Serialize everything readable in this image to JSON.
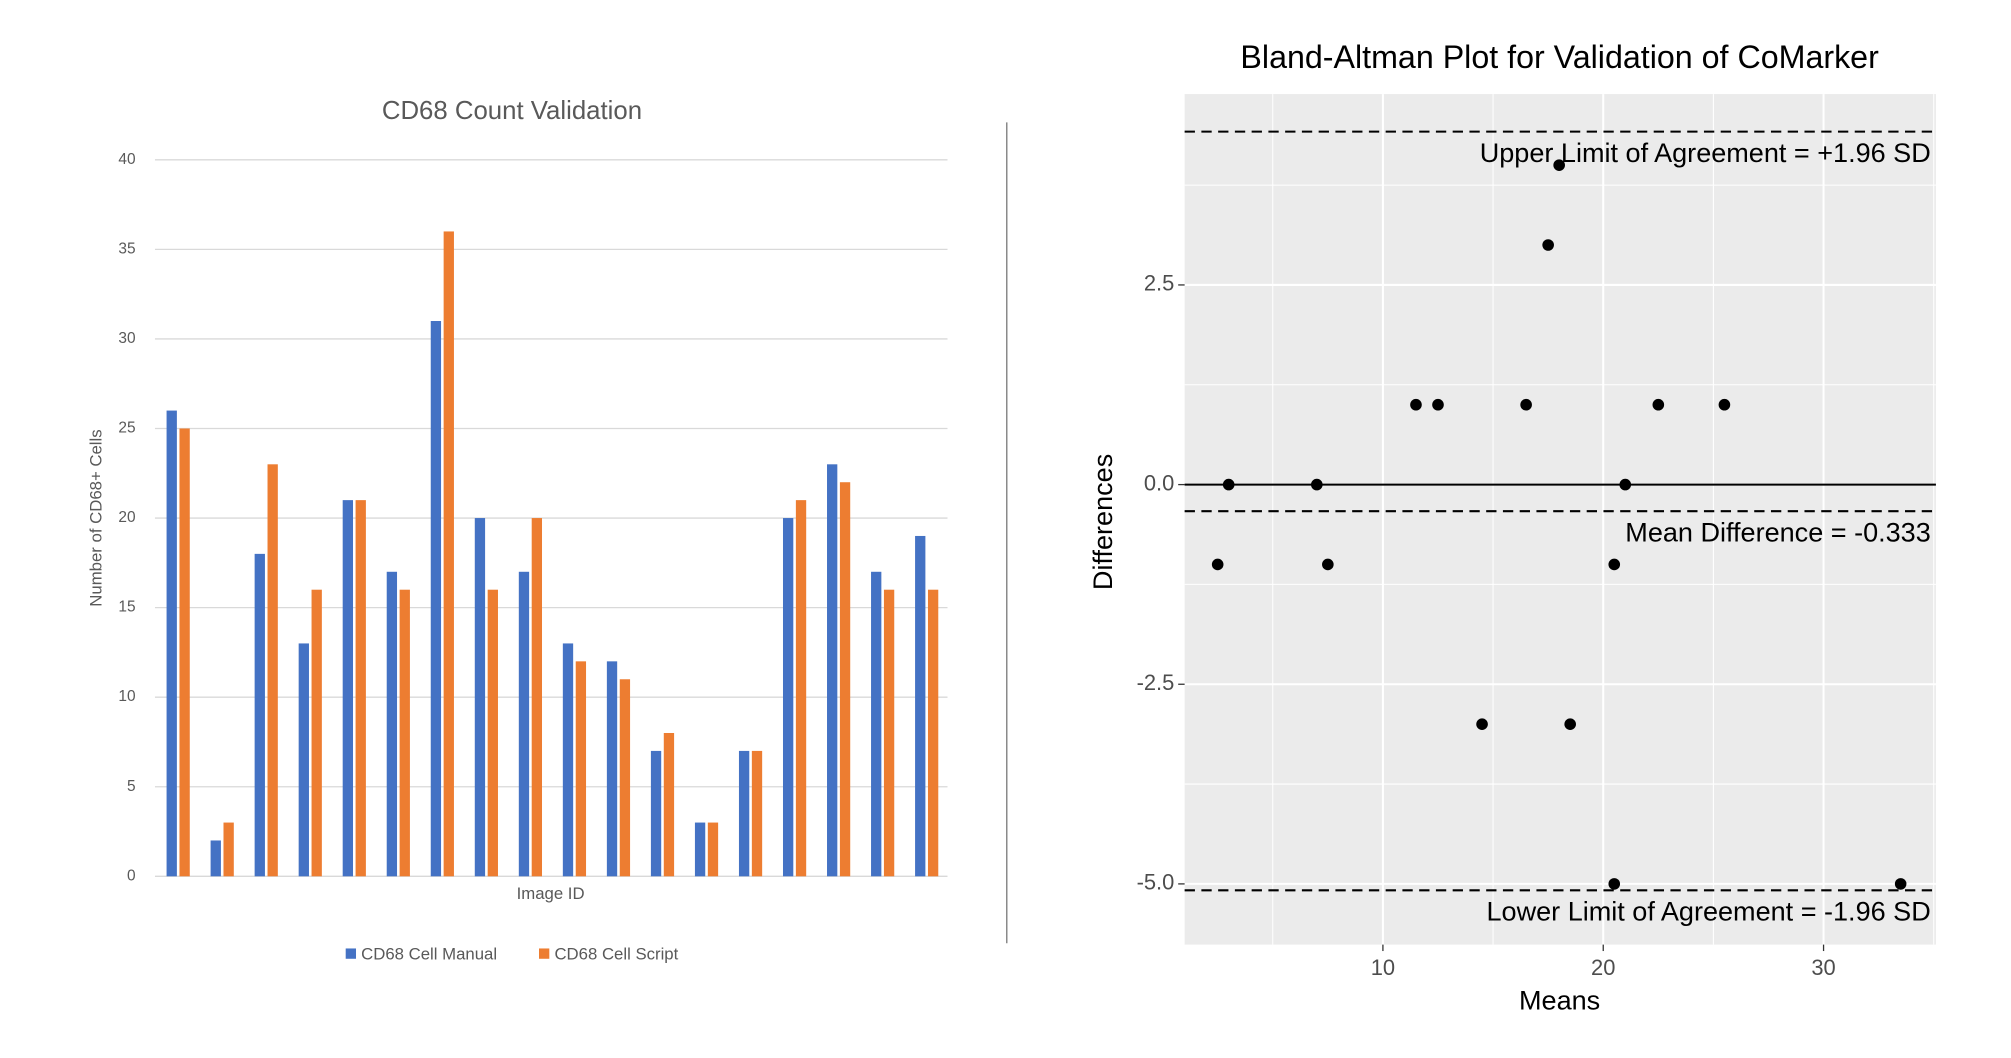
{
  "chart_data": [
    {
      "type": "bar",
      "title": "CD68 Count Validation",
      "xlabel": "Image ID",
      "ylabel": "Number of CD68+ Cells",
      "categories": [
        null,
        null,
        null,
        null,
        null,
        null,
        null,
        null,
        null,
        null,
        null,
        null,
        null,
        null,
        null,
        null,
        null,
        null
      ],
      "series": [
        {
          "name": "CD68 Cell Manual",
          "color": "#4472c4",
          "values": [
            26,
            2,
            18,
            13,
            21,
            17,
            31,
            20,
            17,
            13,
            12,
            7,
            3,
            7,
            20,
            23,
            17,
            19
          ]
        },
        {
          "name": "CD68 Cell Script",
          "color": "#ed7d31",
          "values": [
            25,
            3,
            23,
            16,
            21,
            16,
            36,
            16,
            20,
            12,
            11,
            8,
            3,
            7,
            21,
            22,
            16,
            16
          ]
        }
      ],
      "ylim": [
        0,
        40
      ],
      "yticks": [
        0,
        5,
        10,
        15,
        20,
        25,
        30,
        35,
        40
      ],
      "grid": true,
      "legend": "bottom"
    },
    {
      "type": "scatter",
      "title": "Bland-Altman Plot for Validation of CoMarker",
      "xlabel": "Means",
      "ylabel": "Differences",
      "x": [
        2.5,
        3,
        7,
        7.5,
        11.5,
        12.5,
        14.5,
        16.5,
        17.5,
        18,
        18.5,
        20.5,
        20.5,
        21,
        22.5,
        25.5,
        33.5
      ],
      "y": [
        -1,
        0,
        0,
        -1,
        1,
        1,
        -3,
        1,
        3,
        4,
        -3,
        -1,
        -5,
        0,
        1,
        1,
        -5
      ],
      "color": "#000000",
      "xlim": [
        1,
        35.1
      ],
      "xticks": [
        10,
        20,
        30
      ],
      "ylim": [
        -5.76,
        4.89
      ],
      "yticks": [
        {
          "value": -5,
          "label": "-5.0"
        },
        -2.5,
        {
          "value": 0,
          "label": "0.0"
        },
        2.5
      ],
      "grid": true,
      "hlines": [
        {
          "value": 4.42,
          "label": "Upper Limit of Agreement = +1.96 SD",
          "style": "dashed"
        },
        {
          "value": -0.333,
          "label": "Mean Difference = -0.333",
          "style": "dashed"
        },
        {
          "value": -5.08,
          "label": "Lower Limit of Agreement = -1.96 SD",
          "style": "dashed"
        },
        {
          "value": 0,
          "style": "solid"
        }
      ]
    }
  ]
}
